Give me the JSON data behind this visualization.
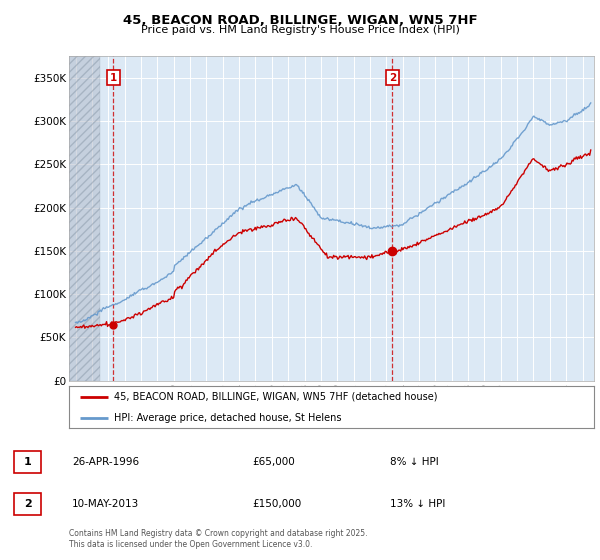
{
  "title": "45, BEACON ROAD, BILLINGE, WIGAN, WN5 7HF",
  "subtitle": "Price paid vs. HM Land Registry's House Price Index (HPI)",
  "ylim": [
    0,
    375000
  ],
  "yticks": [
    0,
    50000,
    100000,
    150000,
    200000,
    250000,
    300000,
    350000
  ],
  "ytick_labels": [
    "£0",
    "£50K",
    "£100K",
    "£150K",
    "£200K",
    "£250K",
    "£300K",
    "£350K"
  ],
  "xlim_start": 1993.6,
  "xlim_end": 2025.7,
  "legend_property_label": "45, BEACON ROAD, BILLINGE, WIGAN, WN5 7HF (detached house)",
  "legend_hpi_label": "HPI: Average price, detached house, St Helens",
  "property_color": "#cc0000",
  "hpi_color": "#6699cc",
  "transaction1_date": "26-APR-1996",
  "transaction1_price": "£65,000",
  "transaction1_note": "8% ↓ HPI",
  "transaction2_date": "10-MAY-2013",
  "transaction2_price": "£150,000",
  "transaction2_note": "13% ↓ HPI",
  "footer": "Contains HM Land Registry data © Crown copyright and database right 2025.\nThis data is licensed under the Open Government Licence v3.0.",
  "background_color": "#ffffff",
  "plot_bg_color": "#dce9f5",
  "grid_color": "#ffffff",
  "hatch_region_end": 1995.5
}
